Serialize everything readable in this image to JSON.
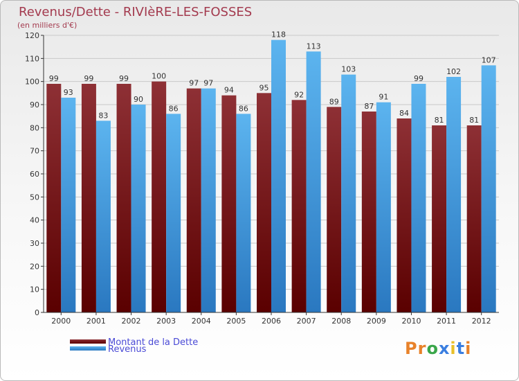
{
  "title": "Revenus/Dette - RIVIèRE-LES-FOSSES",
  "subtitle": "(en milliers d'€)",
  "logo": {
    "text": "Proxiti"
  },
  "colors": {
    "dette": "#7a1e24",
    "revenus": "#3a9ee0",
    "grid": "#c8c8c8"
  },
  "chart_data": {
    "type": "bar",
    "categories": [
      "2000",
      "2001",
      "2002",
      "2003",
      "2004",
      "2005",
      "2006",
      "2007",
      "2008",
      "2009",
      "2010",
      "2011",
      "2012"
    ],
    "series": [
      {
        "name": "Montant de la Dette",
        "values": [
          99,
          99,
          99,
          100,
          97,
          94,
          95,
          92,
          89,
          87,
          84,
          81,
          81
        ]
      },
      {
        "name": "Revenus",
        "values": [
          93,
          83,
          90,
          86,
          97,
          86,
          118,
          113,
          103,
          91,
          99,
          102,
          107
        ]
      }
    ],
    "ylim": [
      0,
      120
    ],
    "yticks": [
      0,
      10,
      20,
      30,
      40,
      50,
      60,
      70,
      80,
      90,
      100,
      110,
      120
    ],
    "grid": true,
    "legend_position": "bottom-left"
  }
}
